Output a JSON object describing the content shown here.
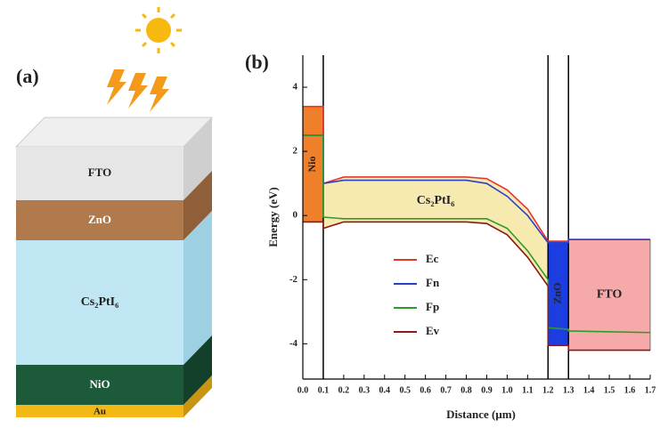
{
  "panel_a": {
    "label": "(a)",
    "layers": [
      "FTO",
      "ZnO",
      "Cs₂PtI₆",
      "NiO",
      "Au"
    ]
  },
  "chart_data": {
    "type": "line",
    "label": "(b)",
    "xlabel": "Distance (μm)",
    "ylabel": "Energy (eV)",
    "xlim": [
      0,
      1.7
    ],
    "ylim": [
      -5.1,
      5.0
    ],
    "xticks": [
      {
        "value": 0,
        "label": "0.0"
      },
      {
        "value": 0.1,
        "label": "0.1"
      },
      {
        "value": 0.2,
        "label": "0.2"
      },
      {
        "value": 0.3,
        "label": "0.3"
      },
      {
        "value": 0.4,
        "label": "0.4"
      },
      {
        "value": 0.5,
        "label": "0.5"
      },
      {
        "value": 0.6,
        "label": "0.6"
      },
      {
        "value": 0.7,
        "label": "0.7"
      },
      {
        "value": 0.8,
        "label": "0.8"
      },
      {
        "value": 0.9,
        "label": "0.9"
      },
      {
        "value": 1.0,
        "label": "1.0"
      },
      {
        "value": 1.1,
        "label": "1.1"
      },
      {
        "value": 1.2,
        "label": "1.2"
      },
      {
        "value": 1.3,
        "label": "1.3"
      },
      {
        "value": 1.4,
        "label": "1.4"
      },
      {
        "value": 1.5,
        "label": "1.5"
      },
      {
        "value": 1.6,
        "label": "1.6"
      },
      {
        "value": 1.7,
        "label": "1.7"
      }
    ],
    "yticks": [
      -4,
      -2,
      0,
      2,
      4
    ],
    "x": [
      0,
      0.1,
      0.1,
      0.2,
      0.5,
      0.8,
      0.9,
      1.0,
      1.1,
      1.2,
      1.2,
      1.3,
      1.3,
      1.7
    ],
    "series": [
      {
        "name": "Ec",
        "color": "#e8352b",
        "values": [
          3.4,
          3.4,
          1.0,
          1.2,
          1.2,
          1.2,
          1.15,
          0.8,
          0.2,
          -0.8,
          -0.8,
          -0.8,
          -0.75,
          -0.75
        ]
      },
      {
        "name": "Fn",
        "color": "#2b3fc8",
        "values": [
          2.5,
          2.5,
          1.0,
          1.1,
          1.1,
          1.1,
          1.0,
          0.6,
          0.0,
          -0.85,
          -0.85,
          -0.85,
          -0.75,
          -0.75
        ]
      },
      {
        "name": "Fp",
        "color": "#2c9a2c",
        "values": [
          2.5,
          2.5,
          -0.05,
          -0.1,
          -0.1,
          -0.1,
          -0.1,
          -0.4,
          -1.1,
          -2.0,
          -3.5,
          -3.55,
          -3.6,
          -3.65
        ]
      },
      {
        "name": "Ev",
        "color": "#8b1a1a",
        "values": [
          -0.2,
          -0.2,
          -0.4,
          -0.2,
          -0.2,
          -0.2,
          -0.25,
          -0.6,
          -1.3,
          -2.2,
          -4.05,
          -4.05,
          -4.2,
          -4.2
        ]
      }
    ],
    "regions": [
      {
        "label": "Nio",
        "color": "#f07f2a"
      },
      {
        "label": "Cs₂PtI₆",
        "color": "#f7eab0"
      },
      {
        "label": "ZnO",
        "color": "#1c3ee0"
      },
      {
        "label": "FTO",
        "color": "#f5a9a9"
      }
    ]
  }
}
